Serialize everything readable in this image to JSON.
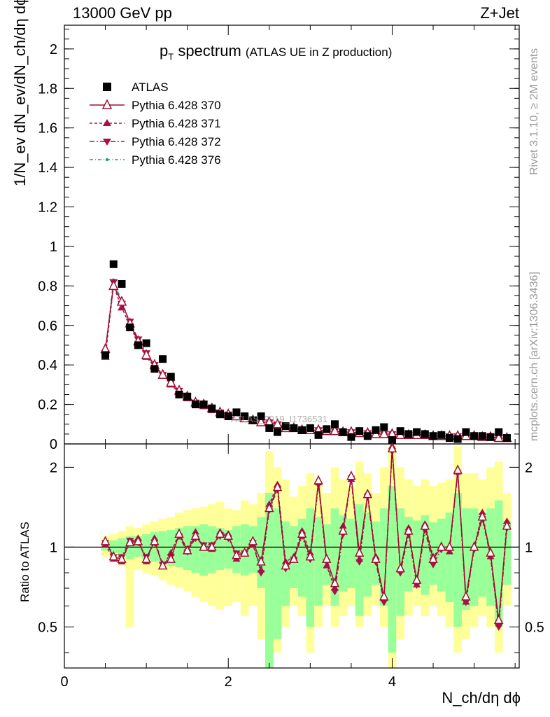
{
  "header": {
    "left": "13000 GeV pp",
    "right": "Z+Jet"
  },
  "title": {
    "main": "p",
    "main_sub": "T",
    "main_rest": " spectrum",
    "detail": "(ATLAS UE in Z production)"
  },
  "side_labels": {
    "rivet": "Rivet 3.1.10, ≥ 2M events",
    "mcplots": "mcplots.cern.ch [arXiv:1306.3436]"
  },
  "watermark": "ATLAS_2019_I1736531",
  "axes": {
    "ylabel_main": "1/N_ev dN_ev/dN_ch/dη dϕ",
    "ylabel_ratio": "Ratio to ATLAS",
    "xlabel": "N_ch/dη dϕ",
    "main_yticks": [
      "0",
      "0.2",
      "0.4",
      "0.6",
      "0.8",
      "1",
      "1.2",
      "1.4",
      "1.6",
      "1.8",
      "2"
    ],
    "ratio_yticks": [
      "0.5",
      "1",
      "2"
    ],
    "xticks": [
      "0",
      "2",
      "4"
    ]
  },
  "legend": [
    {
      "label": "ATLAS",
      "color": "#000000",
      "marker": "square"
    },
    {
      "label": "Pythia 6.428 370",
      "color": "#a01030",
      "marker": "open-triangle-up",
      "dash": "solid"
    },
    {
      "label": "Pythia 6.428 371",
      "color": "#a8104a",
      "marker": "triangle-up",
      "dash": "4,3"
    },
    {
      "label": "Pythia 6.428 372",
      "color": "#a8104a",
      "marker": "triangle-down",
      "dash": "7,3,2,3"
    },
    {
      "label": "Pythia 6.428 376",
      "color": "#20a080",
      "marker": "dot",
      "dash": "5,3,1,3"
    }
  ],
  "chart_data": {
    "type": "line",
    "x": [
      0.5,
      0.6,
      0.7,
      0.8,
      0.9,
      1.0,
      1.1,
      1.2,
      1.3,
      1.4,
      1.5,
      1.6,
      1.7,
      1.8,
      1.9,
      2.0,
      2.1,
      2.2,
      2.3,
      2.4,
      2.5,
      2.6,
      2.7,
      2.8,
      2.9,
      3.0,
      3.1,
      3.2,
      3.3,
      3.4,
      3.5,
      3.6,
      3.7,
      3.8,
      3.9,
      4.0,
      4.1,
      4.2,
      4.3,
      4.4,
      4.5,
      4.6,
      4.7,
      4.8,
      4.9,
      5.0,
      5.1,
      5.2,
      5.3,
      5.4
    ],
    "xlim": [
      0,
      5.55
    ],
    "ylim": [
      0,
      2.12
    ],
    "ratio_ylim": [
      0.35,
      2.45
    ],
    "ratio_scale": "log",
    "series": [
      {
        "name": "ATLAS",
        "values": [
          0.45,
          0.91,
          0.81,
          0.59,
          0.5,
          0.51,
          0.38,
          0.43,
          0.34,
          0.25,
          0.24,
          0.2,
          0.2,
          0.18,
          0.15,
          0.14,
          0.16,
          0.14,
          0.12,
          0.14,
          0.08,
          0.06,
          0.09,
          0.08,
          0.07,
          0.08,
          0.045,
          0.075,
          0.1,
          0.06,
          0.035,
          0.065,
          0.04,
          0.07,
          0.085,
          0.02,
          0.065,
          0.05,
          0.06,
          0.05,
          0.04,
          0.045,
          0.03,
          0.025,
          0.06,
          0.04,
          0.04,
          0.035,
          0.06,
          0.03
        ],
        "ratio": [
          1,
          1,
          1,
          1,
          1,
          1,
          1,
          1,
          1,
          1,
          1,
          1,
          1,
          1,
          1,
          1,
          1,
          1,
          1,
          1,
          1,
          1,
          1,
          1,
          1,
          1,
          1,
          1,
          1,
          1,
          1,
          1,
          1,
          1,
          1,
          1,
          1,
          1,
          1,
          1,
          1,
          1,
          1,
          1,
          1,
          1,
          1,
          1,
          1,
          1
        ]
      },
      {
        "name": "Pythia 6.428 370",
        "values": [
          0.48,
          0.8,
          0.72,
          0.61,
          0.52,
          0.45,
          0.4,
          0.35,
          0.31,
          0.27,
          0.24,
          0.21,
          0.2,
          0.18,
          0.16,
          0.15,
          0.14,
          0.13,
          0.12,
          0.11,
          0.11,
          0.1,
          0.08,
          0.08,
          0.07,
          0.07,
          0.07,
          0.065,
          0.065,
          0.06,
          0.06,
          0.055,
          0.055,
          0.05,
          0.05,
          0.05,
          0.045,
          0.045,
          0.045,
          0.045,
          0.04,
          0.04,
          0.04,
          0.04,
          0.04,
          0.04,
          0.035,
          0.035,
          0.03,
          0.03
        ],
        "ratio": [
          1.05,
          0.92,
          0.9,
          1.04,
          1.05,
          0.9,
          1.05,
          0.85,
          0.9,
          1.12,
          0.97,
          1.1,
          1.0,
          1.0,
          1.12,
          1.1,
          0.93,
          0.95,
          1.05,
          0.88,
          1.4,
          1.68,
          0.85,
          0.9,
          1.12,
          0.92,
          1.78,
          0.9,
          0.73,
          1.15,
          1.85,
          0.95,
          1.58,
          0.9,
          0.65,
          2.35,
          0.83,
          1.15,
          0.75,
          1.2,
          0.9,
          1.0,
          1.0,
          1.95,
          0.65,
          1.0,
          1.3,
          0.95,
          0.53,
          1.2
        ]
      },
      {
        "name": "Pythia 6.428 371",
        "values": [
          0.44,
          0.8,
          0.69,
          0.6,
          0.51,
          0.44,
          0.39,
          0.35,
          0.3,
          0.26,
          0.23,
          0.21,
          0.19,
          0.17,
          0.16,
          0.15,
          0.14,
          0.13,
          0.12,
          0.11,
          0.11,
          0.1,
          0.08,
          0.08,
          0.07,
          0.07,
          0.07,
          0.065,
          0.065,
          0.06,
          0.06,
          0.055,
          0.055,
          0.05,
          0.05,
          0.05,
          0.045,
          0.045,
          0.045,
          0.045,
          0.04,
          0.04,
          0.04,
          0.04,
          0.04,
          0.04,
          0.035,
          0.035,
          0.03,
          0.03
        ],
        "ratio": [
          1.02,
          0.9,
          0.88,
          1.05,
          1.08,
          0.88,
          1.08,
          0.85,
          0.95,
          1.13,
          0.98,
          1.14,
          1.0,
          0.98,
          1.14,
          1.12,
          0.9,
          0.95,
          1.02,
          0.82,
          1.45,
          1.72,
          0.88,
          0.92,
          1.15,
          0.95,
          1.75,
          0.85,
          0.7,
          1.2,
          1.8,
          0.9,
          1.6,
          0.92,
          0.64,
          2.4,
          0.82,
          1.18,
          0.72,
          1.22,
          0.92,
          1.0,
          0.96,
          1.92,
          0.62,
          1.0,
          1.35,
          0.92,
          0.52,
          1.25
        ]
      },
      {
        "name": "Pythia 6.428 372",
        "values": [
          0.46,
          0.82,
          0.71,
          0.62,
          0.53,
          0.46,
          0.4,
          0.35,
          0.31,
          0.27,
          0.24,
          0.21,
          0.2,
          0.18,
          0.16,
          0.15,
          0.14,
          0.13,
          0.12,
          0.11,
          0.11,
          0.1,
          0.08,
          0.08,
          0.07,
          0.07,
          0.07,
          0.065,
          0.065,
          0.06,
          0.06,
          0.055,
          0.055,
          0.05,
          0.05,
          0.05,
          0.045,
          0.045,
          0.045,
          0.045,
          0.04,
          0.04,
          0.04,
          0.04,
          0.04,
          0.04,
          0.035,
          0.035,
          0.03,
          0.03
        ],
        "ratio": [
          1.04,
          0.92,
          0.92,
          1.06,
          1.04,
          0.92,
          1.04,
          0.86,
          0.92,
          1.1,
          0.96,
          1.08,
          1.02,
          1.02,
          1.1,
          1.08,
          0.95,
          0.95,
          1.04,
          0.8,
          1.38,
          1.65,
          0.83,
          0.9,
          1.1,
          0.9,
          1.72,
          0.88,
          0.68,
          1.12,
          1.82,
          0.88,
          1.55,
          0.88,
          0.62,
          2.3,
          0.8,
          1.12,
          0.72,
          1.16,
          0.86,
          0.98,
          0.98,
          1.9,
          0.62,
          0.98,
          1.28,
          0.92,
          0.5,
          1.18
        ]
      },
      {
        "name": "Pythia 6.428 376",
        "values": [
          0.47,
          0.83,
          0.72,
          0.61,
          0.52,
          0.45,
          0.4,
          0.35,
          0.31,
          0.27,
          0.24,
          0.21,
          0.2,
          0.18,
          0.16,
          0.15,
          0.14,
          0.13,
          0.12,
          0.11,
          0.11,
          0.1,
          0.08,
          0.08,
          0.07,
          0.07,
          0.07,
          0.065,
          0.065,
          0.06,
          0.06,
          0.055,
          0.055,
          0.05,
          0.05,
          0.05,
          0.045,
          0.045,
          0.045,
          0.045,
          0.04,
          0.04,
          0.04,
          0.04,
          0.04,
          0.04,
          0.035,
          0.035,
          0.03,
          0.03
        ],
        "ratio": [
          1.06,
          0.93,
          0.91,
          1.04,
          1.06,
          0.91,
          1.06,
          0.86,
          0.91,
          1.12,
          0.98,
          1.11,
          1.01,
          1.0,
          1.13,
          1.11,
          0.92,
          0.96,
          1.04,
          0.84,
          1.42,
          1.7,
          0.86,
          0.91,
          1.13,
          0.93,
          1.76,
          0.88,
          0.72,
          1.16,
          1.84,
          0.93,
          1.58,
          0.9,
          0.64,
          2.36,
          0.82,
          1.16,
          0.74,
          1.2,
          0.9,
          1.0,
          0.98,
          1.94,
          0.64,
          1.0,
          1.32,
          0.94,
          0.53,
          1.22
        ]
      }
    ],
    "band_yellow": [
      [
        0.92,
        1.1
      ],
      [
        0.88,
        1.12
      ],
      [
        0.85,
        1.15
      ],
      [
        0.5,
        1.2
      ],
      [
        0.82,
        1.18
      ],
      [
        0.8,
        1.22
      ],
      [
        0.78,
        1.25
      ],
      [
        0.75,
        1.28
      ],
      [
        0.72,
        1.3
      ],
      [
        0.7,
        1.35
      ],
      [
        0.68,
        1.38
      ],
      [
        0.65,
        1.4
      ],
      [
        0.62,
        1.42
      ],
      [
        0.6,
        1.45
      ],
      [
        0.58,
        1.48
      ],
      [
        0.6,
        1.4
      ],
      [
        0.62,
        1.38
      ],
      [
        0.55,
        1.5
      ],
      [
        0.6,
        1.45
      ],
      [
        0.45,
        1.6
      ],
      [
        0.35,
        2.3
      ],
      [
        0.4,
        2.0
      ],
      [
        0.5,
        1.8
      ],
      [
        0.6,
        1.55
      ],
      [
        0.55,
        1.7
      ],
      [
        0.4,
        1.9
      ],
      [
        0.5,
        1.8
      ],
      [
        0.6,
        1.6
      ],
      [
        0.5,
        2.0
      ],
      [
        0.55,
        1.8
      ],
      [
        0.6,
        1.7
      ],
      [
        0.5,
        2.1
      ],
      [
        0.55,
        1.9
      ],
      [
        0.6,
        1.6
      ],
      [
        0.5,
        2.0
      ],
      [
        0.35,
        2.4
      ],
      [
        0.45,
        2.0
      ],
      [
        0.55,
        1.8
      ],
      [
        0.6,
        1.7
      ],
      [
        0.55,
        1.8
      ],
      [
        0.6,
        1.7
      ],
      [
        0.55,
        1.75
      ],
      [
        0.5,
        1.8
      ],
      [
        0.4,
        2.4
      ],
      [
        0.45,
        1.9
      ],
      [
        0.5,
        1.9
      ],
      [
        0.55,
        1.8
      ],
      [
        0.5,
        2.0
      ],
      [
        0.4,
        2.1
      ],
      [
        0.6,
        1.6
      ]
    ],
    "band_green": [
      [
        0.97,
        1.05
      ],
      [
        0.95,
        1.06
      ],
      [
        0.93,
        1.08
      ],
      [
        0.9,
        1.1
      ],
      [
        0.92,
        1.1
      ],
      [
        0.9,
        1.12
      ],
      [
        0.88,
        1.14
      ],
      [
        0.86,
        1.15
      ],
      [
        0.85,
        1.16
      ],
      [
        0.84,
        1.18
      ],
      [
        0.82,
        1.2
      ],
      [
        0.8,
        1.2
      ],
      [
        0.78,
        1.22
      ],
      [
        0.8,
        1.2
      ],
      [
        0.82,
        1.18
      ],
      [
        0.83,
        1.16
      ],
      [
        0.8,
        1.2
      ],
      [
        0.78,
        1.22
      ],
      [
        0.8,
        1.2
      ],
      [
        0.7,
        1.3
      ],
      [
        0.35,
        1.6
      ],
      [
        0.45,
        1.4
      ],
      [
        0.6,
        1.25
      ],
      [
        0.7,
        1.2
      ],
      [
        0.65,
        1.28
      ],
      [
        0.5,
        1.4
      ],
      [
        0.6,
        1.3
      ],
      [
        0.72,
        1.22
      ],
      [
        0.6,
        1.4
      ],
      [
        0.68,
        1.32
      ],
      [
        0.7,
        1.28
      ],
      [
        0.55,
        1.45
      ],
      [
        0.65,
        1.35
      ],
      [
        0.72,
        1.25
      ],
      [
        0.6,
        1.4
      ],
      [
        0.4,
        1.7
      ],
      [
        0.55,
        1.4
      ],
      [
        0.68,
        1.3
      ],
      [
        0.72,
        1.26
      ],
      [
        0.66,
        1.32
      ],
      [
        0.72,
        1.24
      ],
      [
        0.68,
        1.28
      ],
      [
        0.62,
        1.35
      ],
      [
        0.5,
        1.6
      ],
      [
        0.58,
        1.4
      ],
      [
        0.6,
        1.4
      ],
      [
        0.65,
        1.35
      ],
      [
        0.6,
        1.4
      ],
      [
        0.5,
        1.5
      ],
      [
        0.72,
        1.25
      ]
    ]
  }
}
